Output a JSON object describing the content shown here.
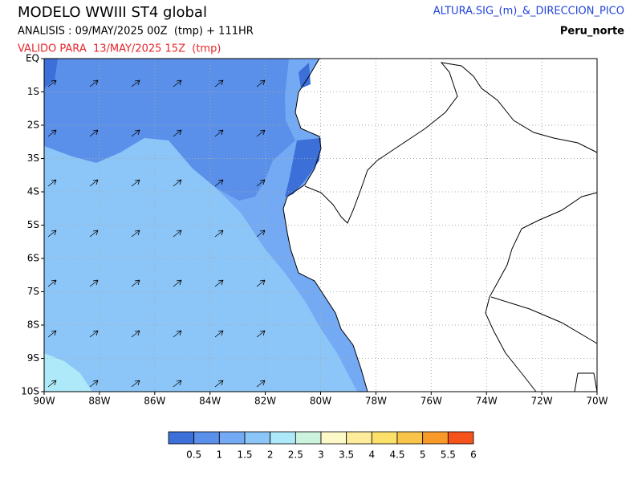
{
  "header": {
    "title": "MODELO WWIII ST4 global",
    "analysis": "ANALISIS : 09/MAY/2025 00Z  (tmp) + 111HR",
    "valid": "VALIDO PARA  13/MAY/2025 15Z  (tmp)",
    "variable": "ALTURA.SIG_(m)_&_DIRECCION_PICO",
    "region": "Peru_norte"
  },
  "map": {
    "lonlim": [
      -90,
      -70
    ],
    "latlim": [
      -10,
      0
    ],
    "lon_ticks": [
      {
        "value": -90,
        "label": "90W"
      },
      {
        "value": -88,
        "label": "88W"
      },
      {
        "value": -86,
        "label": "86W"
      },
      {
        "value": -84,
        "label": "84W"
      },
      {
        "value": -82,
        "label": "82W"
      },
      {
        "value": -80,
        "label": "80W"
      },
      {
        "value": -78,
        "label": "78W"
      },
      {
        "value": -76,
        "label": "76W"
      },
      {
        "value": -74,
        "label": "74W"
      },
      {
        "value": -72,
        "label": "72W"
      },
      {
        "value": -70,
        "label": "70W"
      }
    ],
    "lat_ticks": [
      {
        "value": 0,
        "label": "EQ"
      },
      {
        "value": -1,
        "label": "1S"
      },
      {
        "value": -2,
        "label": "2S"
      },
      {
        "value": -3,
        "label": "3S"
      },
      {
        "value": -4,
        "label": "4S"
      },
      {
        "value": -5,
        "label": "5S"
      },
      {
        "value": -6,
        "label": "6S"
      },
      {
        "value": -7,
        "label": "7S"
      },
      {
        "value": -8,
        "label": "8S"
      },
      {
        "value": -9,
        "label": "9S"
      },
      {
        "value": -10,
        "label": "10S"
      }
    ]
  },
  "colorbar": {
    "colors": [
      "#3c6fd8",
      "#5a90ea",
      "#74aaf4",
      "#8cc6f8",
      "#ade9f8",
      "#cdf2dd",
      "#fdf8c8",
      "#fcec9c",
      "#fbe06a",
      "#f9c44a",
      "#f89a2a",
      "#f5521c"
    ],
    "levels": [
      0.5,
      1,
      1.5,
      2,
      2.5,
      3,
      3.5,
      4,
      4.5,
      5,
      5.5,
      6
    ]
  }
}
